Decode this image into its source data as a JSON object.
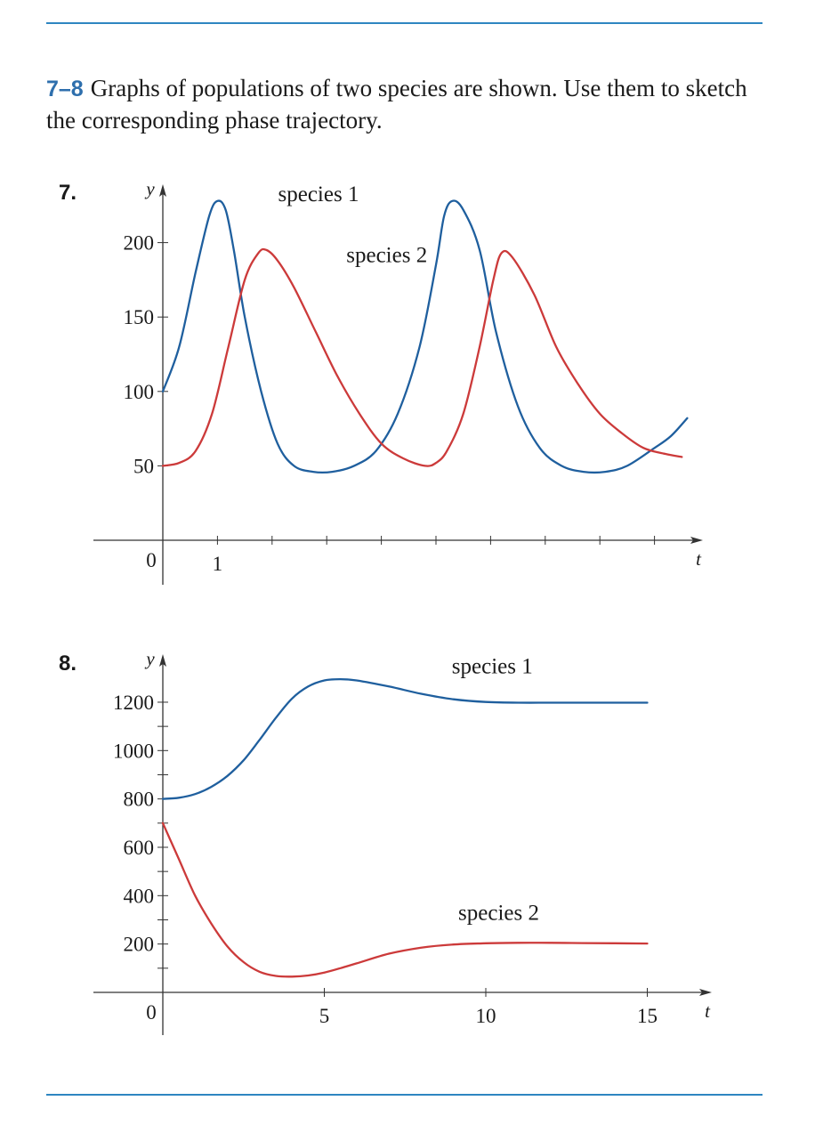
{
  "header": {
    "problem_range": "7–8",
    "instruction": "Graphs of populations of two species are shown. Use them to sketch the corresponding phase trajectory."
  },
  "colors": {
    "species1": "#1f5f9e",
    "species2": "#cc3a3a",
    "axis": "#333333",
    "accent": "#2e6fad"
  },
  "chart_data": [
    {
      "problem_number": "7.",
      "type": "line",
      "title": "",
      "xlabel": "t",
      "ylabel": "y",
      "xlim": [
        0,
        9.8
      ],
      "ylim": [
        0,
        240
      ],
      "x_ticks": [
        1,
        2,
        3,
        4,
        5,
        6,
        7,
        8,
        9
      ],
      "x_tick_labels": [
        {
          "value": 0,
          "label": "0"
        },
        {
          "value": 1,
          "label": "1"
        }
      ],
      "y_ticks": [
        50,
        100,
        150,
        200
      ],
      "y_tick_labels": [
        "50",
        "100",
        "150",
        "200"
      ],
      "series": [
        {
          "name": "species 1",
          "color": "#1f5f9e",
          "x": [
            0,
            0.3,
            0.6,
            0.85,
            1.0,
            1.15,
            1.3,
            1.5,
            1.8,
            2.1,
            2.4,
            2.75,
            3.1,
            3.5,
            3.9,
            4.3,
            4.7,
            5.0,
            5.15,
            5.3,
            5.5,
            5.8,
            6.1,
            6.5,
            6.9,
            7.3,
            7.7,
            8.1,
            8.5,
            9.0,
            9.3,
            9.6
          ],
          "y": [
            100,
            130,
            180,
            218,
            228,
            222,
            195,
            150,
            100,
            65,
            50,
            46,
            46,
            50,
            60,
            85,
            130,
            185,
            218,
            228,
            222,
            195,
            140,
            90,
            62,
            50,
            46,
            46,
            50,
            62,
            70,
            82
          ]
        },
        {
          "name": "species 2",
          "color": "#cc3a3a",
          "x": [
            0,
            0.3,
            0.6,
            0.9,
            1.2,
            1.5,
            1.75,
            1.9,
            2.1,
            2.4,
            2.8,
            3.2,
            3.6,
            4.0,
            4.4,
            4.8,
            5.0,
            5.2,
            5.5,
            5.8,
            6.05,
            6.2,
            6.4,
            6.8,
            7.2,
            7.6,
            8.0,
            8.4,
            8.8,
            9.2,
            9.5
          ],
          "y": [
            50,
            52,
            60,
            85,
            130,
            175,
            193,
            195,
            188,
            170,
            140,
            110,
            85,
            65,
            55,
            50,
            52,
            60,
            85,
            130,
            175,
            193,
            190,
            165,
            130,
            105,
            85,
            72,
            62,
            58,
            56
          ]
        }
      ],
      "annotations": [
        {
          "text": "species 1",
          "series": "species 1",
          "x": 2.85,
          "y": 228
        },
        {
          "text": "species 2",
          "series": "species 2",
          "x": 4.1,
          "y": 187
        }
      ]
    },
    {
      "problem_number": "8.",
      "type": "line",
      "title": "",
      "xlabel": "t",
      "ylabel": "y",
      "xlim": [
        0,
        17
      ],
      "ylim": [
        0,
        1400
      ],
      "x_ticks": [
        5,
        10,
        15
      ],
      "x_tick_labels": [
        {
          "value": 0,
          "label": "0"
        },
        {
          "value": 5,
          "label": "5"
        },
        {
          "value": 10,
          "label": "10"
        },
        {
          "value": 15,
          "label": "15"
        }
      ],
      "y_ticks": [
        100,
        200,
        300,
        400,
        500,
        600,
        700,
        800,
        900,
        1000,
        1100,
        1200
      ],
      "y_tick_labels": [
        "200",
        "400",
        "600",
        "800",
        "1000",
        "1200"
      ],
      "series": [
        {
          "name": "species 1",
          "color": "#1f5f9e",
          "x": [
            0,
            0.5,
            1,
            1.5,
            2,
            2.5,
            3,
            3.5,
            4,
            4.5,
            5,
            5.5,
            6,
            7,
            8,
            9,
            10,
            11,
            12,
            13,
            14,
            15
          ],
          "y": [
            800,
            805,
            820,
            850,
            895,
            960,
            1045,
            1135,
            1215,
            1265,
            1290,
            1295,
            1290,
            1265,
            1235,
            1212,
            1201,
            1198,
            1198,
            1198,
            1198,
            1198
          ]
        },
        {
          "name": "species 2",
          "color": "#cc3a3a",
          "x": [
            0,
            0.5,
            1,
            1.5,
            2,
            2.5,
            3,
            3.5,
            4,
            4.5,
            5,
            5.5,
            6,
            7,
            8,
            9,
            10,
            11,
            12,
            13,
            14,
            15
          ],
          "y": [
            700,
            550,
            400,
            285,
            190,
            125,
            85,
            68,
            65,
            70,
            82,
            100,
            120,
            160,
            185,
            198,
            203,
            205,
            205,
            204,
            203,
            202
          ]
        }
      ],
      "annotations": [
        {
          "text": "species 1",
          "series": "species 1",
          "x": 10.2,
          "y": 1320
        },
        {
          "text": "species 2",
          "series": "species 2",
          "x": 10.4,
          "y": 300
        }
      ]
    }
  ]
}
